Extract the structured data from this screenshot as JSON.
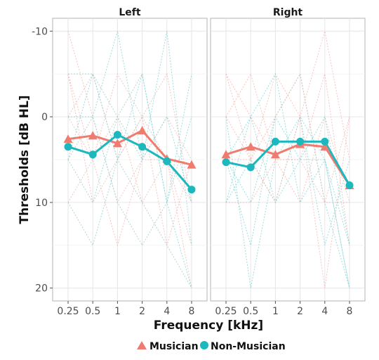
{
  "chart_data": {
    "type": "line",
    "xlabel": "Frequency [kHz]",
    "ylabel": "Thresholds [dB HL]",
    "categories": [
      "0.25",
      "0.5",
      "1",
      "2",
      "4",
      "8"
    ],
    "y_ticks": [
      "-10",
      "0",
      "10",
      "20"
    ],
    "ylim": [
      21.5,
      -11.5
    ],
    "y_reversed": true,
    "legend_position": "bottom",
    "panels": [
      {
        "title": "Left",
        "series": [
          {
            "name": "Musician",
            "color": "#F07B6F",
            "marker": "triangle",
            "values": [
              2.6,
              2.2,
              3.1,
              1.6,
              4.9,
              5.6
            ]
          },
          {
            "name": "Non-Musician",
            "color": "#1CB8BE",
            "marker": "circle",
            "values": [
              3.5,
              4.4,
              2.1,
              3.5,
              5.2,
              8.5
            ]
          }
        ],
        "individuals": [
          [
            -5,
            -5,
            0,
            5,
            -10,
            15
          ],
          [
            0,
            -5,
            5,
            0,
            5,
            10
          ],
          [
            5,
            10,
            0,
            -5,
            10,
            20
          ],
          [
            -10,
            0,
            10,
            5,
            0,
            5
          ],
          [
            10,
            15,
            5,
            10,
            15,
            20
          ],
          [
            0,
            5,
            -5,
            0,
            -5,
            10
          ],
          [
            5,
            0,
            10,
            15,
            10,
            0
          ],
          [
            -5,
            5,
            0,
            10,
            5,
            15
          ],
          [
            5,
            -5,
            5,
            -5,
            10,
            -5
          ],
          [
            10,
            5,
            15,
            5,
            5,
            20
          ],
          [
            0,
            0,
            -10,
            5,
            0,
            10
          ],
          [
            -5,
            10,
            5,
            0,
            15,
            5
          ]
        ]
      },
      {
        "title": "Right",
        "series": [
          {
            "name": "Musician",
            "color": "#F07B6F",
            "marker": "triangle",
            "values": [
              4.4,
              3.5,
              4.4,
              3.2,
              3.5,
              8.0
            ]
          },
          {
            "name": "Non-Musician",
            "color": "#1CB8BE",
            "marker": "circle",
            "values": [
              5.3,
              5.9,
              2.9,
              2.9,
              2.9,
              8.0
            ]
          }
        ],
        "individuals": [
          [
            5,
            10,
            0,
            -5,
            10,
            20
          ],
          [
            0,
            -5,
            5,
            5,
            -5,
            15
          ],
          [
            10,
            5,
            10,
            0,
            15,
            5
          ],
          [
            -5,
            0,
            5,
            10,
            0,
            10
          ],
          [
            5,
            15,
            0,
            5,
            5,
            20
          ],
          [
            0,
            5,
            -5,
            0,
            20,
            0
          ],
          [
            10,
            0,
            10,
            5,
            0,
            15
          ],
          [
            5,
            5,
            0,
            -5,
            10,
            10
          ],
          [
            0,
            20,
            5,
            0,
            5,
            20
          ],
          [
            -5,
            5,
            10,
            0,
            -10,
            5
          ],
          [
            5,
            0,
            -5,
            10,
            5,
            15
          ],
          [
            10,
            10,
            5,
            5,
            10,
            0
          ]
        ]
      }
    ]
  }
}
